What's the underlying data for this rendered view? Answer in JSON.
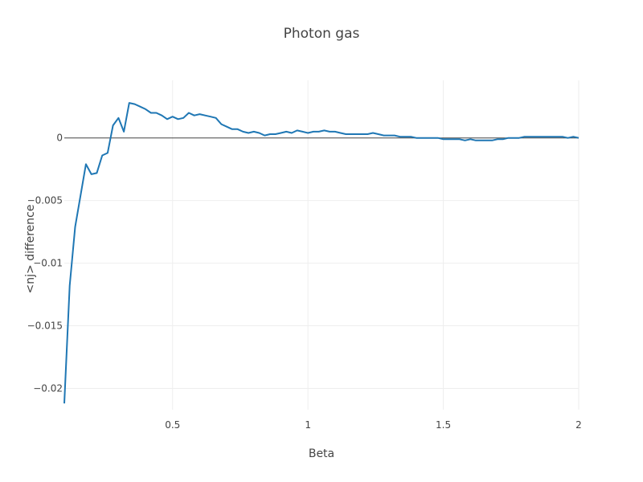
{
  "chart_data": {
    "type": "line",
    "title": "Photon gas",
    "xlabel": "Beta",
    "ylabel": "<nj> difference",
    "xlim": [
      0.1,
      2.0
    ],
    "ylim": [
      -0.0217,
      0.0046
    ],
    "grid": true,
    "xticks": [
      0.5,
      1,
      1.5,
      2
    ],
    "xtick_labels": [
      "0.5",
      "1",
      "1.5",
      "2"
    ],
    "yticks": [
      -0.02,
      -0.015,
      -0.01,
      -0.005,
      0
    ],
    "ytick_labels": [
      "−0.02",
      "−0.015",
      "−0.01",
      "−0.005",
      "0"
    ],
    "series": [
      {
        "color": "#1f77b4",
        "x": [
          0.1,
          0.12,
          0.14,
          0.16,
          0.18,
          0.2,
          0.22,
          0.24,
          0.26,
          0.28,
          0.3,
          0.32,
          0.34,
          0.36,
          0.38,
          0.4,
          0.42,
          0.44,
          0.46,
          0.48,
          0.5,
          0.52,
          0.54,
          0.56,
          0.58,
          0.6,
          0.62,
          0.64,
          0.66,
          0.68,
          0.7,
          0.72,
          0.74,
          0.76,
          0.78,
          0.8,
          0.82,
          0.84,
          0.86,
          0.88,
          0.9,
          0.92,
          0.94,
          0.96,
          0.98,
          1.0,
          1.02,
          1.04,
          1.06,
          1.08,
          1.1,
          1.12,
          1.14,
          1.16,
          1.18,
          1.2,
          1.22,
          1.24,
          1.26,
          1.28,
          1.3,
          1.32,
          1.34,
          1.36,
          1.38,
          1.4,
          1.42,
          1.44,
          1.46,
          1.48,
          1.5,
          1.52,
          1.54,
          1.56,
          1.58,
          1.6,
          1.62,
          1.64,
          1.66,
          1.68,
          1.7,
          1.72,
          1.74,
          1.76,
          1.78,
          1.8,
          1.82,
          1.84,
          1.86,
          1.88,
          1.9,
          1.92,
          1.94,
          1.96,
          1.98,
          2.0
        ],
        "y": [
          -0.0212,
          -0.0118,
          -0.0071,
          -0.0046,
          -0.0021,
          -0.0029,
          -0.0028,
          -0.0014,
          -0.0012,
          0.001,
          0.0016,
          0.0005,
          0.0028,
          0.0027,
          0.0025,
          0.0023,
          0.002,
          0.002,
          0.0018,
          0.0015,
          0.0017,
          0.0015,
          0.0016,
          0.002,
          0.0018,
          0.0019,
          0.0018,
          0.0017,
          0.0016,
          0.0011,
          0.0009,
          0.0007,
          0.0007,
          0.0005,
          0.0004,
          0.0005,
          0.0004,
          0.0002,
          0.0003,
          0.0003,
          0.0004,
          0.0005,
          0.0004,
          0.0006,
          0.0005,
          0.0004,
          0.0005,
          0.0005,
          0.0006,
          0.0005,
          0.0005,
          0.0004,
          0.0003,
          0.0003,
          0.0003,
          0.0003,
          0.0003,
          0.0004,
          0.0003,
          0.0002,
          0.0002,
          0.0002,
          0.0001,
          0.0001,
          0.0001,
          0.0,
          0.0,
          0.0,
          0.0,
          0.0,
          -0.0001,
          -0.0001,
          -0.0001,
          -0.0001,
          -0.0002,
          -0.0001,
          -0.0002,
          -0.0002,
          -0.0002,
          -0.0002,
          -0.0001,
          -0.0001,
          0.0,
          0.0,
          0.0,
          0.0001,
          0.0001,
          0.0001,
          0.0001,
          0.0001,
          0.0001,
          0.0001,
          0.0001,
          0.0,
          0.0001,
          0.0
        ]
      }
    ]
  }
}
